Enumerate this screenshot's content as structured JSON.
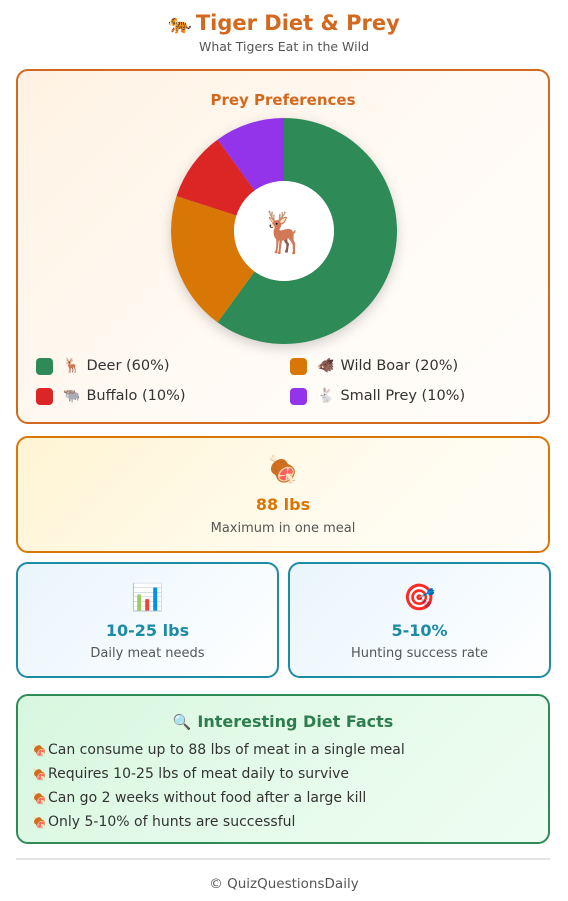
{
  "header": {
    "icon": "🐅",
    "icon_name": "tiger-icon",
    "title": "Tiger Diet & Prey",
    "subtitle": "What Tigers Eat in the Wild"
  },
  "chart_card": {
    "center_icon": "🦌",
    "center_icon_name": "deer-icon",
    "colors": {
      "border": "#d2691e",
      "title": "#d2691e"
    }
  },
  "chart_data": {
    "type": "pie",
    "title": "Prey Preferences",
    "donut": true,
    "series": [
      {
        "name": "Deer",
        "value": 60,
        "color": "#2e8b57",
        "icon": "🦌",
        "legend": "Deer (60%)"
      },
      {
        "name": "Wild Boar",
        "value": 20,
        "color": "#d97706",
        "icon": "🐗",
        "legend": "Wild Boar (20%)"
      },
      {
        "name": "Buffalo",
        "value": 10,
        "color": "#dc2626",
        "icon": "🐃",
        "legend": "Buffalo (10%)"
      },
      {
        "name": "Small Prey",
        "value": 10,
        "color": "#9333ea",
        "icon": "🐇",
        "legend": "Small Prey (10%)"
      }
    ],
    "legend_placement": "bottom"
  },
  "meal": {
    "icon": "🍖",
    "icon_name": "meat-icon",
    "value": "88 lbs",
    "label": "Maximum in one meal",
    "color": "#d97706"
  },
  "daily": {
    "icon": "📊",
    "icon_name": "bar-chart-icon",
    "value": "10-25 lbs",
    "label": "Daily meat needs",
    "color": "#1d8aa6"
  },
  "hunting": {
    "icon": "🎯",
    "icon_name": "target-icon",
    "value": "5-10%",
    "label": "Hunting success rate",
    "color": "#1d8aa6"
  },
  "facts": {
    "icon": "🔍",
    "icon_name": "magnifier-icon",
    "title": "Interesting Diet Facts",
    "bullet_icon": "🍖",
    "items": [
      "Can consume up to 88 lbs of meat in a single meal",
      "Requires 10-25 lbs of meat daily to survive",
      "Can go 2 weeks without food after a large kill",
      "Only 5-10% of hunts are successful"
    ],
    "color": "#2e8b57"
  },
  "footer": {
    "text": "© QuizQuestionsDaily"
  }
}
